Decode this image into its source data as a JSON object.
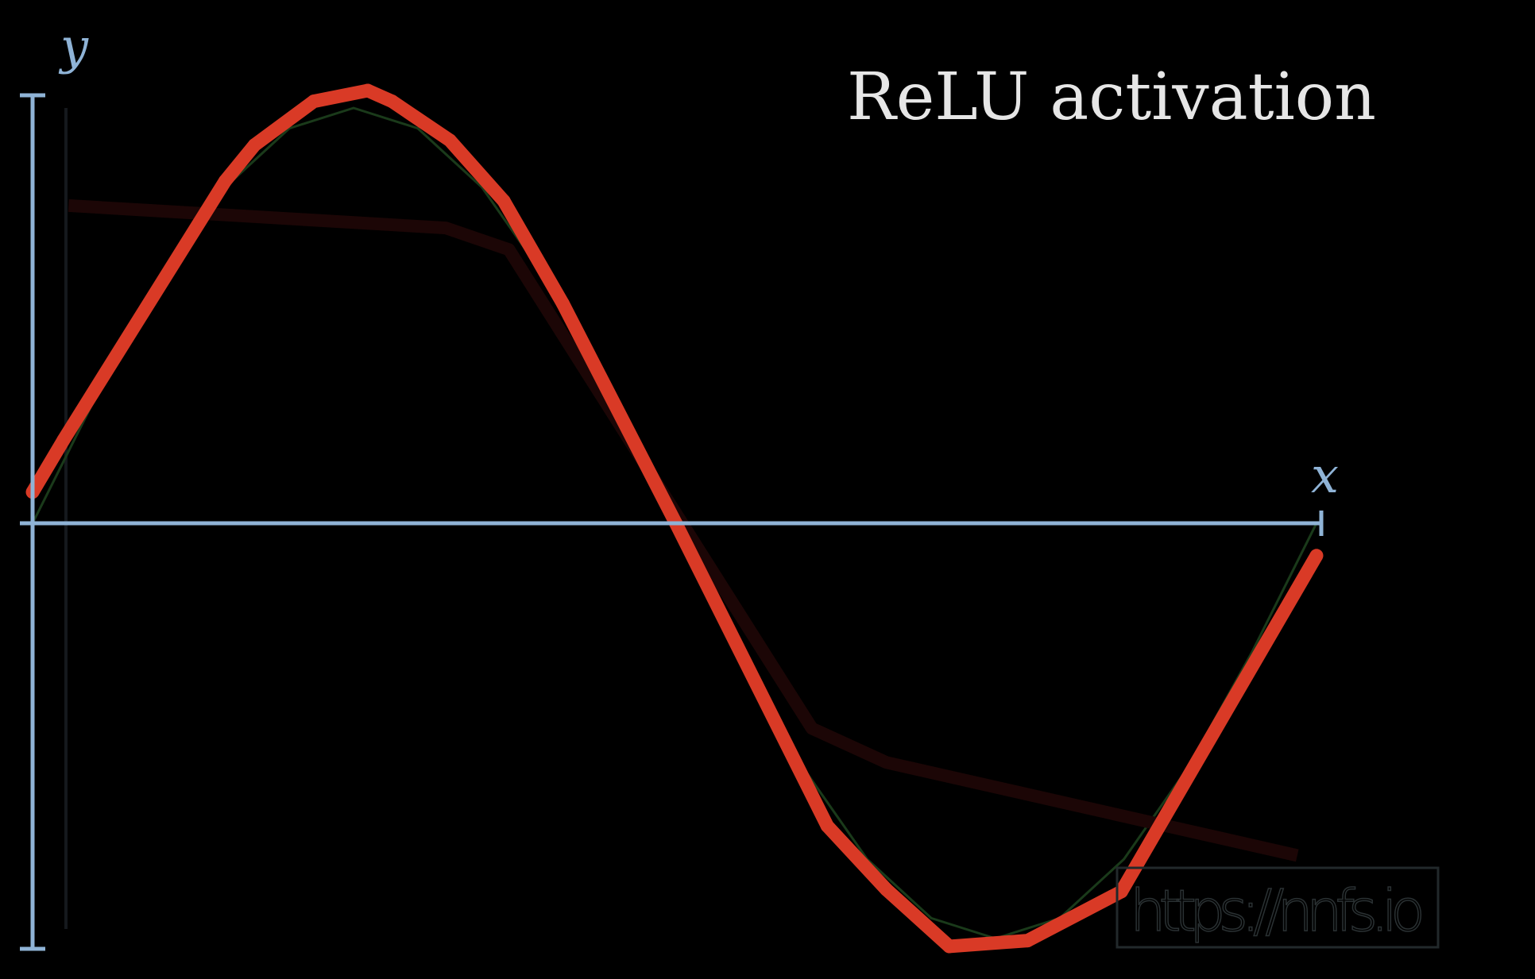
{
  "chart_data": {
    "type": "line",
    "title": "ReLU activation",
    "xlabel": "x",
    "ylabel": "y",
    "xlim": [
      0,
      1
    ],
    "ylim": [
      -1,
      1
    ],
    "grid": false,
    "series": [
      {
        "role": "target",
        "function": "sine",
        "color": "#1a3a1a",
        "x": [
          0,
          0.05,
          0.1,
          0.15,
          0.2,
          0.25,
          0.3,
          0.35,
          0.4,
          0.45,
          0.5,
          0.55,
          0.6,
          0.65,
          0.7,
          0.75,
          0.8,
          0.85,
          0.9,
          0.95,
          1.0
        ],
        "y": [
          0,
          0.309,
          0.588,
          0.809,
          0.951,
          1.0,
          0.951,
          0.809,
          0.588,
          0.309,
          0,
          -0.309,
          -0.588,
          -0.809,
          -0.951,
          -1.0,
          -0.951,
          -0.809,
          -0.588,
          -0.309,
          0
        ]
      },
      {
        "role": "previous-fit",
        "color": "#1c0606",
        "x": [
          0.028,
          0.322,
          0.371,
          0.607,
          0.665,
          0.985
        ],
        "y": [
          0.765,
          0.711,
          0.659,
          -0.494,
          -0.576,
          -0.8
        ]
      },
      {
        "role": "relu-fit",
        "color": "#d93a26",
        "x": [
          0,
          0.024,
          0.15,
          0.173,
          0.219,
          0.261,
          0.28,
          0.325,
          0.367,
          0.413,
          0.501,
          0.619,
          0.665,
          0.714,
          0.775,
          0.848,
          1.0
        ],
        "y": [
          0.075,
          0.2,
          0.824,
          0.911,
          1.016,
          1.042,
          1.016,
          0.922,
          0.776,
          0.529,
          0,
          -0.729,
          -0.882,
          -1.019,
          -1.005,
          -0.887,
          -0.078
        ]
      }
    ],
    "axis_color": "#8fb3d6"
  },
  "watermark": "https://nnfs.io"
}
